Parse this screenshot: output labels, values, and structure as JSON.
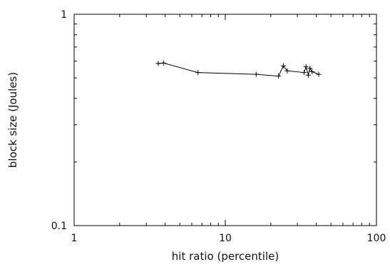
{
  "chart_data": {
    "type": "line",
    "title": "",
    "xlabel": "hit ratio (percentile)",
    "ylabel": "block size (Joules)",
    "x_scale": "log",
    "y_scale": "log",
    "xlim": [
      1,
      100
    ],
    "ylim": [
      0.1,
      1
    ],
    "x_ticks": [
      {
        "value": 1,
        "label": "1"
      },
      {
        "value": 10,
        "label": "10"
      },
      {
        "value": 100,
        "label": "100"
      }
    ],
    "y_ticks": [
      {
        "value": 0.1,
        "label": "0.1"
      },
      {
        "value": 1,
        "label": "1"
      }
    ],
    "grid": false,
    "legend": "none",
    "line_color": "#000000",
    "series": [
      {
        "marker": "plus",
        "x": [
          3.6,
          3.9,
          6.6,
          16,
          22.5,
          24.2,
          25.7,
          33.2,
          34.2,
          35.4,
          36.3,
          37.5,
          41.5
        ],
        "y": [
          0.585,
          0.588,
          0.53,
          0.52,
          0.51,
          0.57,
          0.54,
          0.53,
          0.565,
          0.515,
          0.555,
          0.535,
          0.52
        ]
      }
    ]
  }
}
